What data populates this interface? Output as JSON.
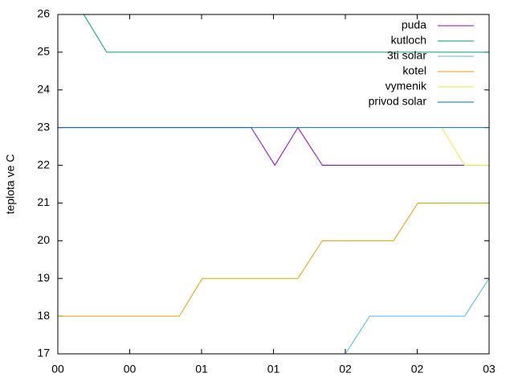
{
  "chart_data": {
    "type": "line",
    "y_label": "teplota ve C",
    "xlim": [
      0,
      6
    ],
    "xticks": [
      {
        "value": 0,
        "label": "00"
      },
      {
        "value": 1,
        "label": "00"
      },
      {
        "value": 2,
        "label": "01"
      },
      {
        "value": 3,
        "label": "01"
      },
      {
        "value": 4,
        "label": "02"
      },
      {
        "value": 5,
        "label": "02"
      },
      {
        "value": 6,
        "label": "03"
      }
    ],
    "ylim": [
      17,
      26
    ],
    "yticks": [
      17,
      18,
      19,
      20,
      21,
      22,
      23,
      24,
      25,
      26
    ],
    "legend": "top-right",
    "series": [
      {
        "name": "puda",
        "color": "#9400d3",
        "x": [
          0,
          2.69,
          3.02,
          3.34,
          3.68,
          5.66
        ],
        "values": [
          23,
          23,
          22,
          23,
          22,
          22
        ]
      },
      {
        "name": "kutloch",
        "color": "#009e73",
        "x": [
          0.36,
          0.68,
          6
        ],
        "values": [
          26,
          25,
          25
        ]
      },
      {
        "name": "3ti solar",
        "color": "#56b4e9",
        "x": [
          4.0,
          4.34,
          5.66,
          6
        ],
        "values": [
          17,
          18,
          18,
          19
        ]
      },
      {
        "name": "kotel",
        "color": "#e69f00",
        "x": [
          0,
          1.69,
          2.01,
          3.34,
          3.68,
          4.67,
          5.01,
          6
        ],
        "values": [
          18,
          18,
          19,
          19,
          20,
          20,
          21,
          21
        ]
      },
      {
        "name": "vymenik",
        "color": "#f0e442",
        "x": [
          5.34,
          5.66,
          6
        ],
        "values": [
          23,
          22,
          22
        ]
      },
      {
        "name": "privod solar",
        "color": "#0072b2",
        "x": [
          0,
          6
        ],
        "values": [
          23,
          23
        ]
      }
    ]
  }
}
